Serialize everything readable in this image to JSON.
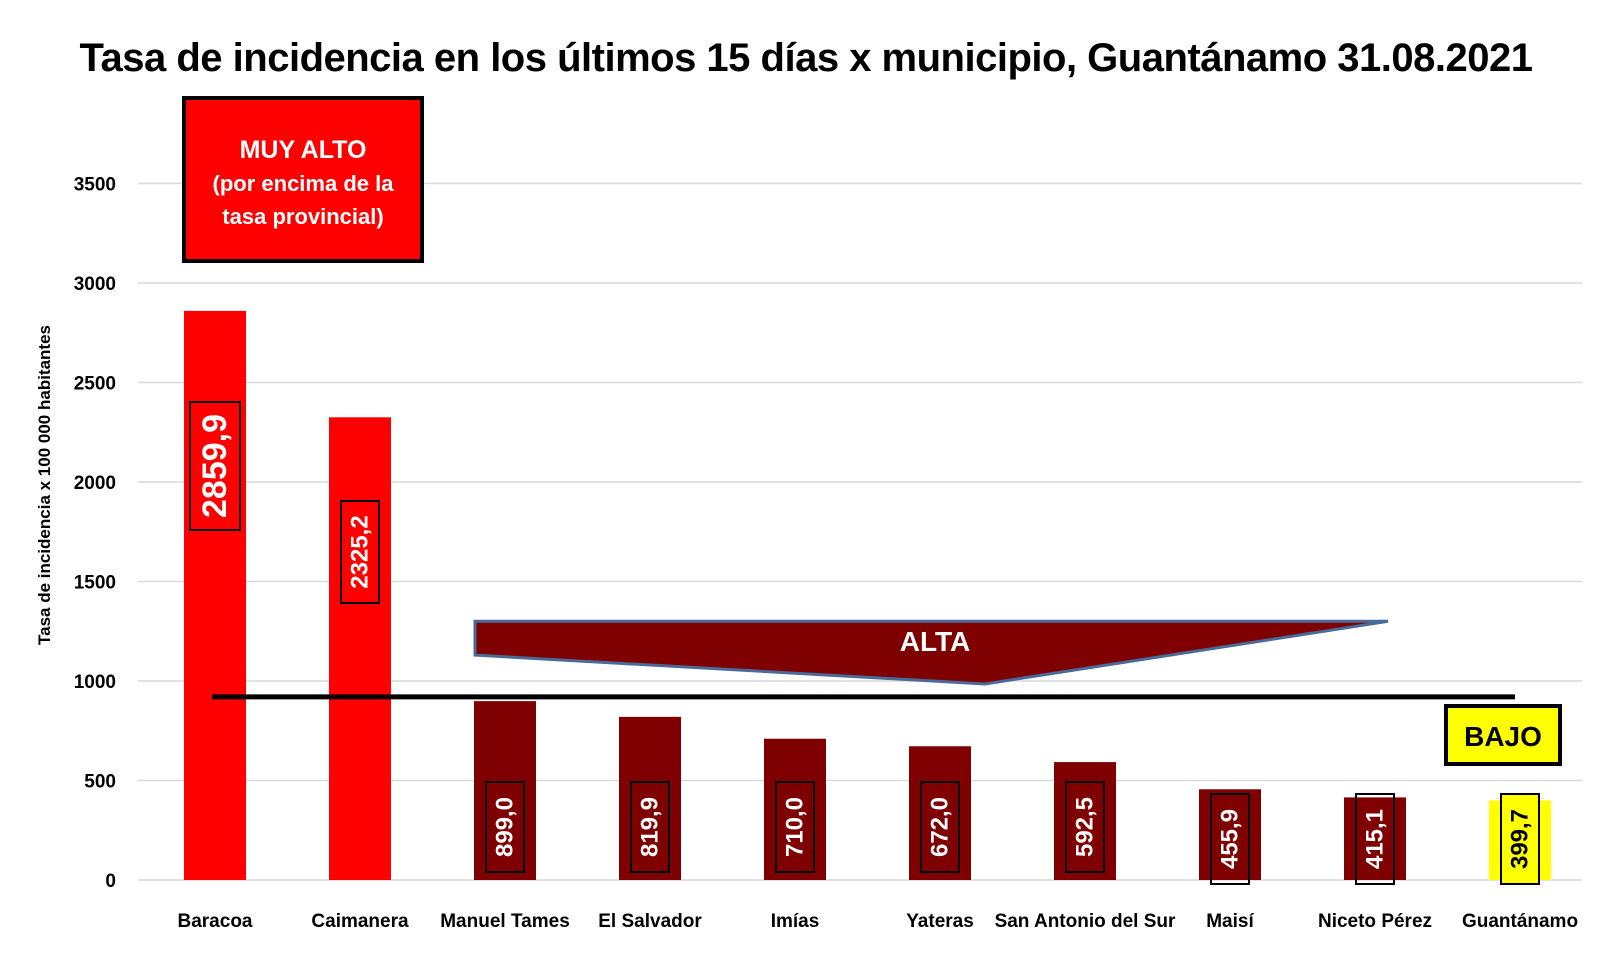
{
  "chart_data": {
    "type": "bar",
    "title": "Tasa de incidencia en los últimos 15 días x municipio, Guantánamo 31.08.2021",
    "ylabel": "Tasa de incidencia  x 100 000 habitantes",
    "xlabel": "",
    "ylim": [
      0,
      3700
    ],
    "yticks": [
      0,
      500,
      1000,
      1500,
      2000,
      2500,
      3000,
      3500
    ],
    "grid": true,
    "categories": [
      "Baracoa",
      "Caimanera",
      "Manuel Tames",
      "El Salvador",
      "Imías",
      "Yateras",
      "San Antonio del Sur",
      "Maisí",
      "Niceto Pérez",
      "Guantánamo"
    ],
    "values": [
      2859.9,
      2325.2,
      899.0,
      819.9,
      710.0,
      672.0,
      592.5,
      455.9,
      415.1,
      399.7
    ],
    "value_labels": [
      "2859,9",
      "2325,2",
      "899,0",
      "819,9",
      "710,0",
      "672,0",
      "592,5",
      "455,9",
      "415,1",
      "399,7"
    ],
    "bar_colors": [
      "#ff0000",
      "#ff0000",
      "#7f0000",
      "#7f0000",
      "#7f0000",
      "#7f0000",
      "#7f0000",
      "#7f0000",
      "#7f0000",
      "#ffff00"
    ],
    "provincial_rate_line": 920,
    "annotations": {
      "muy_alto": {
        "lines": [
          "MUY ALTO",
          "(por encima de la",
          "tasa provincial)"
        ],
        "color": "#ff0000"
      },
      "alta": {
        "text": "ALTA",
        "color": "#7f0000"
      },
      "bajo": {
        "text": "BAJO",
        "color": "#ffff00"
      }
    }
  }
}
